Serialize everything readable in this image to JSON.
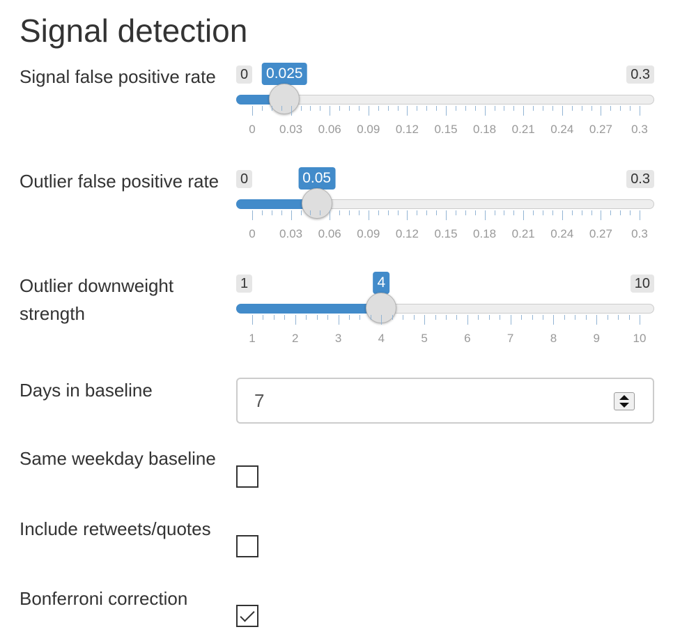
{
  "title": "Signal detection",
  "sliders": [
    {
      "id": "signal-fpr",
      "label": "Signal false positive rate",
      "min": 0,
      "max": 0.3,
      "value": 0.025,
      "min_label": "0",
      "max_label": "0.3",
      "value_label": "0.025",
      "tick_labels": [
        "0",
        "0.03",
        "0.06",
        "0.09",
        "0.12",
        "0.15",
        "0.18",
        "0.21",
        "0.24",
        "0.27",
        "0.3"
      ],
      "minor_per_major": 3
    },
    {
      "id": "outlier-fpr",
      "label": "Outlier false positive rate",
      "min": 0,
      "max": 0.3,
      "value": 0.05,
      "min_label": "0",
      "max_label": "0.3",
      "value_label": "0.05",
      "tick_labels": [
        "0",
        "0.03",
        "0.06",
        "0.09",
        "0.12",
        "0.15",
        "0.18",
        "0.21",
        "0.24",
        "0.27",
        "0.3"
      ],
      "minor_per_major": 3
    },
    {
      "id": "outlier-downweight",
      "label": "Outlier downweight strength",
      "min": 1,
      "max": 10,
      "value": 4,
      "min_label": "1",
      "max_label": "10",
      "value_label": "4",
      "tick_labels": [
        "1",
        "2",
        "3",
        "4",
        "5",
        "6",
        "7",
        "8",
        "9",
        "10"
      ],
      "minor_per_major": 3
    }
  ],
  "days_baseline": {
    "label": "Days in baseline",
    "value": "7"
  },
  "checkboxes": [
    {
      "id": "same-weekday",
      "label": "Same weekday baseline",
      "checked": false
    },
    {
      "id": "include-retweets",
      "label": "Include retweets/quotes",
      "checked": false
    },
    {
      "id": "bonferroni",
      "label": "Bonferroni correction",
      "checked": true
    }
  ],
  "colors": {
    "accent": "#428bca",
    "text": "#333333",
    "tick_label": "#999999"
  }
}
